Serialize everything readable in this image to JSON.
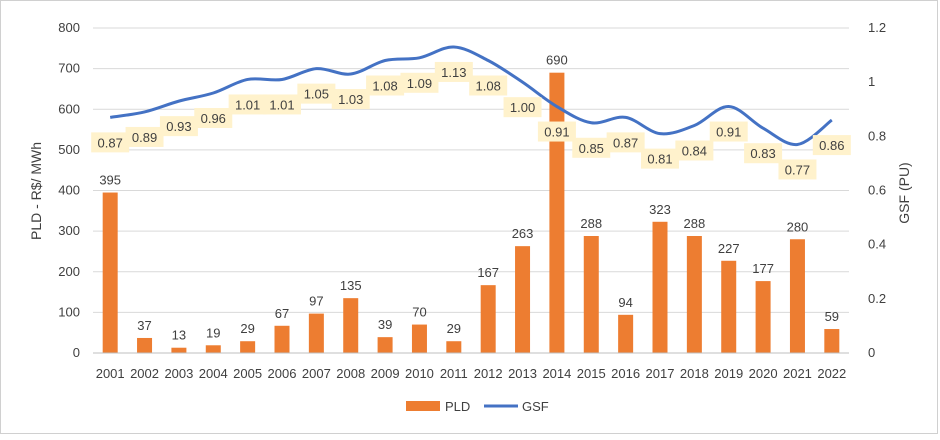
{
  "colors": {
    "pld": "#ED7D31",
    "gsf": "#4472C4",
    "gsf_label_bg": "#FFF2CC",
    "grid": "#D9D9D9",
    "axis": "#BFBFBF"
  },
  "chart_data": {
    "type": "bar",
    "categories": [
      "2001",
      "2002",
      "2003",
      "2004",
      "2005",
      "2006",
      "2007",
      "2008",
      "2009",
      "2010",
      "2011",
      "2012",
      "2013",
      "2014",
      "2015",
      "2016",
      "2017",
      "2018",
      "2019",
      "2020",
      "2021",
      "2022"
    ],
    "series": [
      {
        "name": "PLD",
        "type": "bar",
        "axis": "left",
        "values": [
          395,
          37,
          13,
          19,
          29,
          67,
          97,
          135,
          39,
          70,
          29,
          167,
          263,
          690,
          288,
          94,
          323,
          288,
          227,
          177,
          280,
          59
        ],
        "labels": [
          "395",
          "37",
          "13",
          "19",
          "29",
          "67",
          "97",
          "135",
          "39",
          "70",
          "29",
          "167",
          "263",
          "690",
          "288",
          "94",
          "323",
          "288",
          "227",
          "177",
          "280",
          "59"
        ]
      },
      {
        "name": "GSF",
        "type": "line",
        "axis": "right",
        "values": [
          0.87,
          0.89,
          0.93,
          0.96,
          1.01,
          1.01,
          1.05,
          1.03,
          1.08,
          1.09,
          1.13,
          1.08,
          1.0,
          0.91,
          0.85,
          0.87,
          0.81,
          0.84,
          0.91,
          0.83,
          0.77,
          0.86
        ],
        "labels": [
          "0.87",
          "0.89",
          "0.93",
          "0.96",
          "1.01",
          "1.01",
          "1.05",
          "1.03",
          "1.08",
          "1.09",
          "1.13",
          "1.08",
          "1.00",
          "0.91",
          "0.85",
          "0.87",
          "0.81",
          "0.84",
          "0.91",
          "0.83",
          "0.77",
          "0.86"
        ]
      }
    ],
    "ylabel": "PLD - R$/ MWh",
    "y2label": "GSF (PU)",
    "ylim": [
      0,
      800
    ],
    "y2lim": [
      0,
      1.2
    ],
    "y_ticks": [
      "0",
      "100",
      "200",
      "300",
      "400",
      "500",
      "600",
      "700",
      "800"
    ],
    "y2_ticks": [
      "0",
      "0.2",
      "0.4",
      "0.6",
      "0.8",
      "1",
      "1.2"
    ],
    "grid": true,
    "legend": {
      "position": "bottom",
      "items": [
        "PLD",
        "GSF"
      ]
    }
  }
}
